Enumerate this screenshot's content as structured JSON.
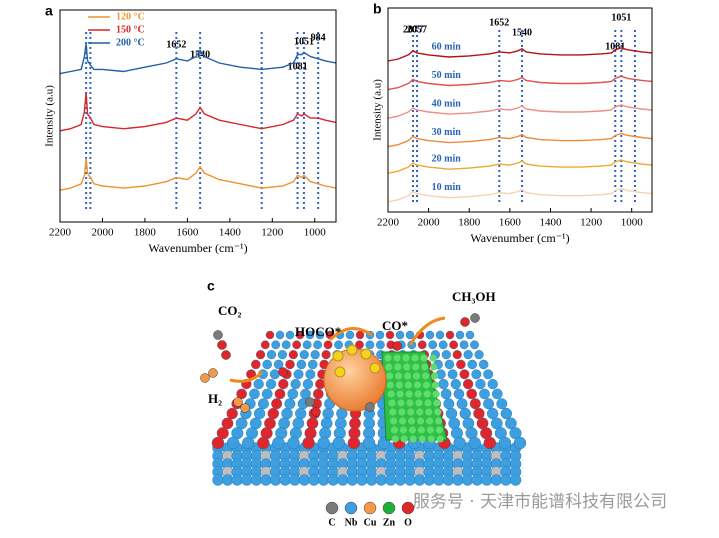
{
  "chart_data": [
    {
      "type": "line",
      "panel_label": "a",
      "xlabel": "Wavenumber (cm⁻¹)",
      "ylabel": "Intensity (a.u)",
      "xlim": [
        2200,
        900
      ],
      "xticks": [
        2200,
        2000,
        1800,
        1600,
        1400,
        1200,
        1000
      ],
      "ylim": [
        0,
        10
      ],
      "legend": "upper left",
      "x": [
        2200,
        2150,
        2100,
        2085,
        2077,
        2070,
        2057,
        2040,
        2000,
        1900,
        1800,
        1700,
        1652,
        1600,
        1560,
        1540,
        1520,
        1450,
        1350,
        1250,
        1150,
        1100,
        1081,
        1060,
        1051,
        1020,
        984,
        950,
        900
      ],
      "series": [
        {
          "name": "120 °C",
          "color": "#f0922e",
          "values": [
            1.5,
            1.6,
            1.8,
            2.2,
            3.0,
            2.3,
            2.1,
            1.8,
            1.7,
            1.6,
            1.7,
            1.9,
            2.1,
            2.0,
            2.3,
            2.6,
            2.3,
            2.0,
            1.8,
            1.6,
            1.7,
            1.9,
            2.2,
            2.1,
            2.2,
            1.9,
            1.8,
            1.7,
            1.6
          ]
        },
        {
          "name": "150 °C",
          "color": "#d8262b",
          "values": [
            4.3,
            4.4,
            4.6,
            5.2,
            6.1,
            5.1,
            4.9,
            4.6,
            4.5,
            4.4,
            4.5,
            4.7,
            4.9,
            4.8,
            5.1,
            5.4,
            5.1,
            4.8,
            4.6,
            4.4,
            4.6,
            4.8,
            5.1,
            5.0,
            5.1,
            4.9,
            4.9,
            4.8,
            4.7
          ]
        },
        {
          "name": "200 °C",
          "color": "#1f5fa8",
          "values": [
            7.0,
            7.1,
            7.2,
            7.8,
            8.4,
            7.6,
            7.4,
            7.2,
            7.2,
            7.1,
            7.3,
            7.5,
            7.7,
            7.6,
            7.8,
            8.1,
            7.8,
            7.5,
            7.3,
            7.2,
            7.3,
            7.5,
            7.9,
            7.9,
            8.0,
            7.8,
            7.7,
            7.6,
            7.5
          ]
        }
      ],
      "reference_lines": [
        2077,
        2057,
        1652,
        1540,
        1250,
        1081,
        1051,
        984
      ],
      "peak_labels": [
        1652,
        1540,
        1081,
        1051,
        984
      ]
    },
    {
      "type": "line",
      "panel_label": "b",
      "xlabel": "Wavenumber (cm⁻¹)",
      "ylabel": "Intensity (a.u)",
      "xlim": [
        2200,
        900
      ],
      "xticks": [
        2200,
        2000,
        1800,
        1600,
        1400,
        1200,
        1000
      ],
      "ylim": [
        0,
        10
      ],
      "x": [
        2200,
        2150,
        2100,
        2077,
        2057,
        2000,
        1900,
        1800,
        1700,
        1652,
        1600,
        1560,
        1540,
        1520,
        1450,
        1350,
        1250,
        1150,
        1100,
        1081,
        1051,
        1020,
        984,
        950,
        900
      ],
      "series": [
        {
          "name": "10 min",
          "color": "#f7d3b0",
          "values": [
            0.5,
            0.6,
            0.8,
            1.0,
            0.9,
            0.8,
            0.7,
            0.75,
            0.85,
            0.95,
            0.9,
            1.0,
            1.1,
            0.95,
            0.85,
            0.8,
            0.8,
            0.85,
            0.9,
            1.05,
            1.15,
            1.05,
            1.0,
            0.95,
            0.9
          ]
        },
        {
          "name": "20 min",
          "color": "#f0a830",
          "values": [
            1.9,
            2.0,
            2.2,
            2.4,
            2.3,
            2.2,
            2.1,
            2.15,
            2.25,
            2.35,
            2.3,
            2.4,
            2.5,
            2.35,
            2.25,
            2.2,
            2.2,
            2.25,
            2.3,
            2.45,
            2.55,
            2.45,
            2.4,
            2.35,
            2.3
          ]
        },
        {
          "name": "30 min",
          "color": "#ee8a3a",
          "values": [
            3.2,
            3.3,
            3.5,
            3.7,
            3.6,
            3.5,
            3.4,
            3.45,
            3.55,
            3.65,
            3.6,
            3.7,
            3.8,
            3.65,
            3.55,
            3.5,
            3.5,
            3.55,
            3.6,
            3.75,
            3.85,
            3.75,
            3.7,
            3.65,
            3.6
          ]
        },
        {
          "name": "40 min",
          "color": "#ef8f86",
          "values": [
            4.6,
            4.7,
            4.9,
            5.1,
            5.0,
            4.9,
            4.8,
            4.85,
            4.95,
            5.05,
            5.0,
            5.1,
            5.2,
            5.05,
            4.95,
            4.9,
            4.9,
            4.95,
            5.0,
            5.15,
            5.25,
            5.15,
            5.1,
            5.05,
            5.0
          ]
        },
        {
          "name": "50 min",
          "color": "#e0524e",
          "values": [
            6.0,
            6.1,
            6.3,
            6.5,
            6.4,
            6.3,
            6.2,
            6.25,
            6.35,
            6.45,
            6.4,
            6.5,
            6.6,
            6.45,
            6.35,
            6.3,
            6.3,
            6.35,
            6.4,
            6.55,
            6.65,
            6.55,
            6.5,
            6.45,
            6.4
          ]
        },
        {
          "name": "60 min",
          "color": "#b01218",
          "values": [
            7.4,
            7.5,
            7.7,
            7.9,
            7.8,
            7.7,
            7.6,
            7.65,
            7.75,
            7.85,
            7.8,
            7.9,
            8.0,
            7.85,
            7.75,
            7.7,
            7.7,
            7.75,
            7.8,
            7.95,
            8.05,
            7.95,
            7.9,
            7.85,
            7.8
          ]
        }
      ],
      "reference_lines": [
        2077,
        2057,
        1652,
        1540,
        1081,
        1051,
        984
      ],
      "peak_labels": [
        2077,
        2057,
        1652,
        1540,
        1081,
        1051
      ]
    }
  ],
  "illustration": {
    "panel_label": "c",
    "labels": [
      "CO₂",
      "HOCO*",
      "CO*",
      "CH₃OH",
      "H₂"
    ],
    "atoms": [
      {
        "symbol": "C",
        "color": "#7a7a7a"
      },
      {
        "symbol": "Nb",
        "color": "#3d9ee0"
      },
      {
        "symbol": "Cu",
        "color": "#f29a4a"
      },
      {
        "symbol": "Zn",
        "color": "#1fae3a"
      },
      {
        "symbol": "O",
        "color": "#e0262b"
      }
    ]
  },
  "watermark": "服务号 · 天津市能谱科技有限公司"
}
